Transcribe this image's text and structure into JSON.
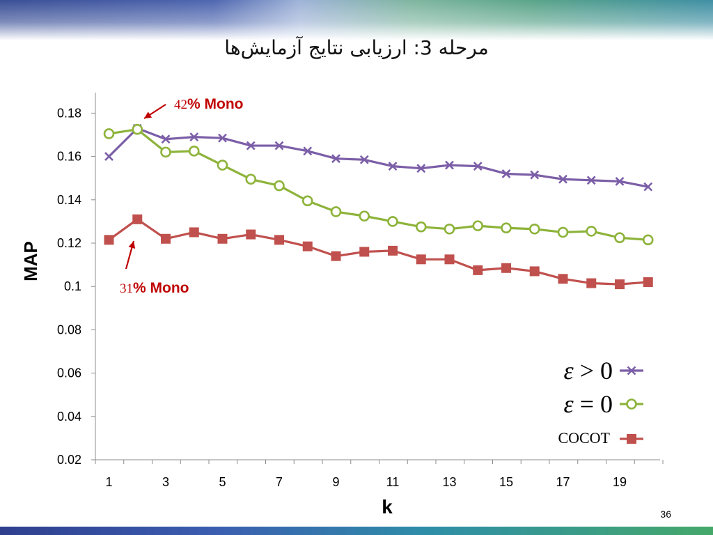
{
  "slide": {
    "title": "مرحله 3: ارزیابی نتایج آزمایش‌ها",
    "page_number": "36"
  },
  "chart_data": {
    "type": "line",
    "xlabel": "k",
    "ylabel": "MAP",
    "x": [
      1,
      2,
      3,
      4,
      5,
      6,
      7,
      8,
      9,
      10,
      11,
      12,
      13,
      14,
      15,
      16,
      17,
      18,
      19,
      20
    ],
    "x_tick_labels": [
      "1",
      "3",
      "5",
      "7",
      "9",
      "11",
      "13",
      "15",
      "17",
      "19"
    ],
    "y_tick_labels": [
      "0.02",
      "0.04",
      "0.06",
      "0.08",
      "0.1",
      "0.12",
      "0.14",
      "0.16",
      "0.18"
    ],
    "ylim": [
      0.02,
      0.19
    ],
    "grid": false,
    "legend_position": "bottom-right",
    "series": [
      {
        "name": "ε > 0",
        "color": "#7b5ea7",
        "marker": "x-cross",
        "values": [
          0.16,
          0.173,
          0.168,
          0.169,
          0.1685,
          0.165,
          0.165,
          0.1625,
          0.159,
          0.1585,
          0.1555,
          0.1545,
          0.156,
          0.1555,
          0.152,
          0.1515,
          0.1495,
          0.149,
          0.1485,
          0.146
        ]
      },
      {
        "name": "ε = 0",
        "color": "#8db33a",
        "marker": "circle",
        "values": [
          0.1705,
          0.1725,
          0.162,
          0.1625,
          0.156,
          0.1495,
          0.1465,
          0.1395,
          0.1345,
          0.1325,
          0.13,
          0.1275,
          0.1265,
          0.128,
          0.127,
          0.1265,
          0.125,
          0.1255,
          0.1225,
          0.1215
        ]
      },
      {
        "name": "COCOT",
        "color": "#c0504d",
        "marker": "square",
        "values": [
          0.1215,
          0.131,
          0.122,
          0.125,
          0.122,
          0.124,
          0.1215,
          0.1185,
          0.114,
          0.116,
          0.1165,
          0.1125,
          0.1125,
          0.1075,
          0.1085,
          0.107,
          0.1035,
          0.1015,
          0.101,
          0.102
        ]
      }
    ],
    "annotations": [
      {
        "num": "42",
        "text": "% Mono",
        "target_series": 0,
        "target_x": 2,
        "color": "#c00000"
      },
      {
        "num": "31",
        "text": "% Mono",
        "target_series": 2,
        "target_x": 2,
        "color": "#c00000"
      }
    ]
  }
}
